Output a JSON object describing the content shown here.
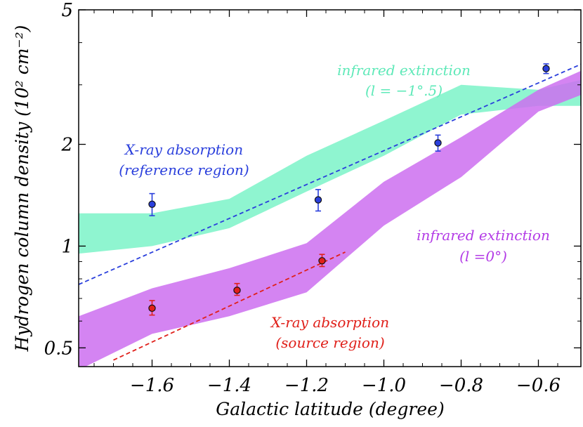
{
  "chart_data": {
    "type": "scatter",
    "xlabel": "Galactic latitude (degree)",
    "ylabel": "Hydrogen column density (10² cm⁻²)",
    "xlim": [
      -1.79,
      -0.49
    ],
    "ylim": [
      0.44,
      5
    ],
    "y_scale": "log",
    "x_ticks": [
      "−1.6",
      "−1.4",
      "−1.2",
      "−1.0",
      "−0.8",
      "−0.6"
    ],
    "y_ticks": [
      "5",
      "2",
      "1",
      "0.5"
    ],
    "x_tick_values": [
      -1.6,
      -1.4,
      -1.2,
      -1.0,
      -0.8,
      -0.6
    ],
    "y_tick_values": [
      5,
      2,
      1,
      0.5
    ],
    "grid": false,
    "colors": {
      "ir_ref_band": "#8ff5d0",
      "ir_src_band": "#cc6ff0",
      "xray_ref": "#2a3fdc",
      "xray_src": "#e0201a"
    },
    "bands": [
      {
        "name": "infrared extinction (l = −1°.5)",
        "x": [
          -1.79,
          -1.6,
          -1.4,
          -1.2,
          -1.0,
          -0.8,
          -0.6,
          -0.49
        ],
        "lower": [
          0.95,
          1.0,
          1.13,
          1.45,
          1.85,
          2.45,
          2.6,
          2.6
        ],
        "upper": [
          1.25,
          1.25,
          1.38,
          1.85,
          2.35,
          3.0,
          2.9,
          3.1
        ]
      },
      {
        "name": "infrared extinction (l = 0°)",
        "x": [
          -1.79,
          -1.6,
          -1.4,
          -1.2,
          -1.0,
          -0.8,
          -0.6,
          -0.49
        ],
        "lower": [
          0.43,
          0.55,
          0.62,
          0.73,
          1.15,
          1.6,
          2.5,
          2.8
        ],
        "upper": [
          0.62,
          0.75,
          0.86,
          1.02,
          1.55,
          2.1,
          2.9,
          3.3
        ]
      }
    ],
    "series": [
      {
        "name": "X-ray absorption (reference region)",
        "x": [
          -1.6,
          -1.17,
          -0.86,
          -0.58
        ],
        "y": [
          1.33,
          1.37,
          2.02,
          3.35
        ],
        "err_low": [
          1.23,
          1.27,
          1.91,
          3.24
        ],
        "err_high": [
          1.43,
          1.47,
          2.13,
          3.46
        ],
        "fit": {
          "x": [
            -1.79,
            -0.49
          ],
          "y": [
            0.77,
            3.45
          ]
        }
      },
      {
        "name": "X-ray absorption (source region)",
        "x": [
          -1.6,
          -1.38,
          -1.16
        ],
        "y": [
          0.655,
          0.74,
          0.905
        ],
        "err_low": [
          0.625,
          0.715,
          0.87
        ],
        "err_high": [
          0.69,
          0.775,
          0.945
        ],
        "fit": {
          "x": [
            -1.7,
            -1.1
          ],
          "y": [
            0.46,
            0.96
          ]
        }
      }
    ],
    "annotations": [
      {
        "line1": "infrared extinction",
        "line2_parts": [
          "(",
          "l",
          " = −1°.5)"
        ],
        "color": "#5ee9b8"
      },
      {
        "line1": "X-ray absorption",
        "line2_parts": [
          "(reference region)"
        ],
        "color": "#2a3fdc"
      },
      {
        "line1": "infrared extinction",
        "line2_parts": [
          "(",
          "l",
          " =0°)"
        ],
        "color": "#b33be6"
      },
      {
        "line1": "X-ray absorption",
        "line2_parts": [
          "(source region)"
        ],
        "color": "#e0201a"
      }
    ]
  }
}
